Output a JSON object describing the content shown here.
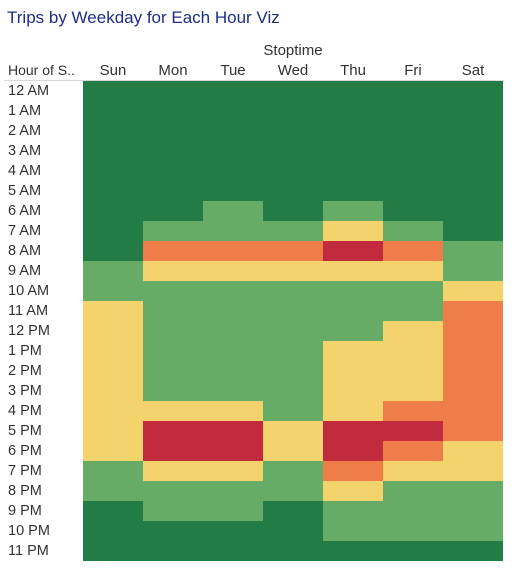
{
  "title": "Trips by Weekday for Each Hour Viz",
  "column_group_header": "Stoptime",
  "row_header": "Hour of S..",
  "colors": {
    "dark_green": "#237b45",
    "green": "#66ab66",
    "yellow": "#f5d36c",
    "orange": "#ef7d4a",
    "red": "#c22b3d",
    "title": "#1f2d86"
  },
  "chart_data": {
    "type": "heatmap",
    "title": "Trips by Weekday for Each Hour Viz",
    "x_header": "Stoptime",
    "y_header": "Hour of S..",
    "columns": [
      "Sun",
      "Mon",
      "Tue",
      "Wed",
      "Thu",
      "Fri",
      "Sat"
    ],
    "rows": [
      "12 AM",
      "1 AM",
      "2 AM",
      "3 AM",
      "4 AM",
      "5 AM",
      "6 AM",
      "7 AM",
      "8 AM",
      "9 AM",
      "10 AM",
      "11 AM",
      "12 PM",
      "1 PM",
      "2 PM",
      "3 PM",
      "4 PM",
      "5 PM",
      "6 PM",
      "7 PM",
      "8 PM",
      "9 PM",
      "10 PM",
      "11 PM"
    ],
    "color_levels": [
      "dark_green",
      "green",
      "yellow",
      "orange",
      "red"
    ],
    "levels": [
      [
        0,
        0,
        0,
        0,
        0,
        0,
        0
      ],
      [
        0,
        0,
        0,
        0,
        0,
        0,
        0
      ],
      [
        0,
        0,
        0,
        0,
        0,
        0,
        0
      ],
      [
        0,
        0,
        0,
        0,
        0,
        0,
        0
      ],
      [
        0,
        0,
        0,
        0,
        0,
        0,
        0
      ],
      [
        0,
        0,
        0,
        0,
        0,
        0,
        0
      ],
      [
        0,
        0,
        1,
        0,
        1,
        0,
        0
      ],
      [
        0,
        1,
        1,
        1,
        2,
        1,
        0
      ],
      [
        0,
        3,
        3,
        3,
        4,
        3,
        1
      ],
      [
        1,
        2,
        2,
        2,
        2,
        2,
        1
      ],
      [
        1,
        1,
        1,
        1,
        1,
        1,
        2
      ],
      [
        2,
        1,
        1,
        1,
        1,
        1,
        3
      ],
      [
        2,
        1,
        1,
        1,
        1,
        2,
        3
      ],
      [
        2,
        1,
        1,
        1,
        2,
        2,
        3
      ],
      [
        2,
        1,
        1,
        1,
        2,
        2,
        3
      ],
      [
        2,
        1,
        1,
        1,
        2,
        2,
        3
      ],
      [
        2,
        2,
        2,
        1,
        2,
        3,
        3
      ],
      [
        2,
        4,
        4,
        2,
        4,
        4,
        3
      ],
      [
        2,
        4,
        4,
        2,
        4,
        3,
        2
      ],
      [
        1,
        2,
        2,
        1,
        3,
        2,
        2
      ],
      [
        1,
        1,
        1,
        1,
        2,
        1,
        1
      ],
      [
        0,
        1,
        1,
        0,
        1,
        1,
        1
      ],
      [
        0,
        0,
        0,
        0,
        1,
        1,
        1
      ],
      [
        0,
        0,
        0,
        0,
        0,
        0,
        0
      ]
    ]
  }
}
